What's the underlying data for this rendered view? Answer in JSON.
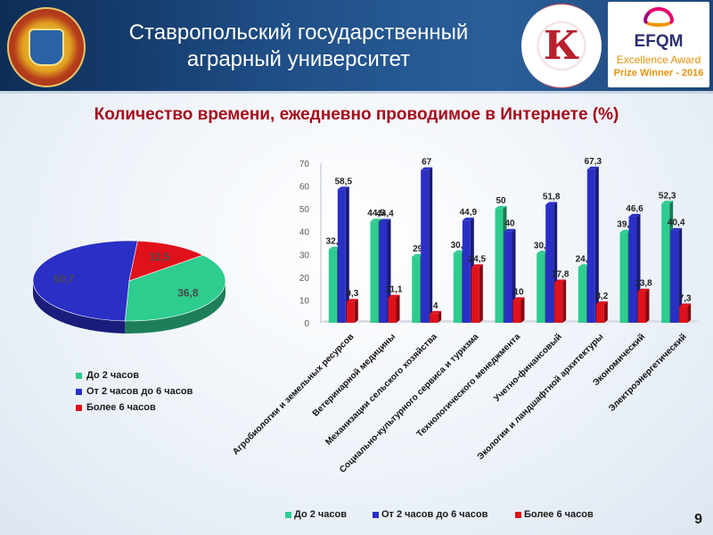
{
  "header": {
    "title_line1": "Ставропольский государственный",
    "title_line2": "аграрный университет",
    "logo_left_icon": "university-emblem-icon",
    "logo_mid_icon": "quality-award-emblem-icon",
    "logo_mid_letter": "К",
    "efqm": {
      "name": "EFQM",
      "line2": "Excellence Award",
      "line3": "Prize Winner - 2016"
    }
  },
  "chart_title": "Количество времени,  ежедневно проводимое в Интернете (%)",
  "slide_number": "9",
  "colors": {
    "green": "#2ecc8f",
    "blue": "#2a2fc6",
    "red": "#e0111a"
  },
  "chart_data": [
    {
      "type": "pie",
      "labels": [
        "До 2 часов",
        "От 2 часов до 6 часов",
        "Более 6 часов"
      ],
      "values": [
        36.8,
        50.7,
        12.5
      ],
      "value_labels": [
        "36,8",
        "50,7",
        "12,5"
      ],
      "legend_position": "bottom"
    },
    {
      "type": "bar",
      "categories": [
        "Агробиологии и земельных ресурсов",
        "Ветеринарной медицины",
        "Механизации сельского хозяйства",
        "Социально-культурного сервиса и туризма",
        "Технологического менеджмента",
        "Учетно-финансовый",
        "Экологии и ландшафтной архитектуры",
        "Экономический",
        "Электроэнергетический"
      ],
      "series": [
        {
          "name": "До 2 часов",
          "values": [
            32.2,
            44.5,
            29,
            30.6,
            50,
            30.4,
            24.5,
            39.6,
            52.3
          ],
          "labels": [
            "32,2",
            "44,5",
            "29",
            "30,6",
            "50",
            "30,4",
            "24,5",
            "39,6",
            "52,3"
          ]
        },
        {
          "name": "От 2 часов до 6 часов",
          "values": [
            58.5,
            44.4,
            67,
            44.9,
            40,
            51.8,
            67.3,
            46.6,
            40.4
          ],
          "labels": [
            "58,5",
            "44,4",
            "67",
            "44,9",
            "40",
            "51,8",
            "67,3",
            "46,6",
            "40,4"
          ]
        },
        {
          "name": "Более 6 часов",
          "values": [
            9.3,
            11.1,
            4,
            24.5,
            10,
            17.8,
            8.2,
            13.8,
            7.3
          ],
          "labels": [
            "9,3",
            "11,1",
            "4",
            "24,5",
            "10",
            "17,8",
            "8,2",
            "13,8",
            "7,3"
          ]
        }
      ],
      "ylim": [
        0,
        70
      ],
      "yticks": [
        "0",
        "10",
        "20",
        "30",
        "40",
        "50",
        "60",
        "70"
      ],
      "legend_position": "bottom",
      "grid": false
    }
  ]
}
